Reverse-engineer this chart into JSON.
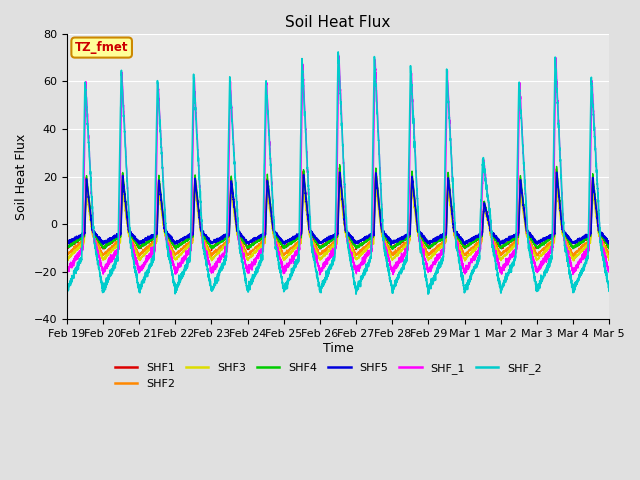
{
  "title": "Soil Heat Flux",
  "xlabel": "Time",
  "ylabel": "Soil Heat Flux",
  "ylim": [
    -40,
    80
  ],
  "yticks": [
    -40,
    -20,
    0,
    20,
    40,
    60,
    80
  ],
  "bg_color": "#e0e0e0",
  "plot_bg_color": "#e8e8e8",
  "annotation_text": "TZ_fmet",
  "annotation_bg": "#ffff99",
  "annotation_border": "#cc8800",
  "annotation_text_color": "#cc0000",
  "series_order": [
    "SHF1",
    "SHF2",
    "SHF3",
    "SHF4",
    "SHF5",
    "SHF_1",
    "SHF_2"
  ],
  "series": {
    "SHF1": {
      "color": "#dd0000",
      "lw": 1.0
    },
    "SHF2": {
      "color": "#ff8800",
      "lw": 1.0
    },
    "SHF3": {
      "color": "#dddd00",
      "lw": 1.0
    },
    "SHF4": {
      "color": "#00cc00",
      "lw": 1.0
    },
    "SHF5": {
      "color": "#0000dd",
      "lw": 1.2
    },
    "SHF_1": {
      "color": "#ff00ff",
      "lw": 1.0
    },
    "SHF_2": {
      "color": "#00cccc",
      "lw": 1.2
    }
  },
  "xtick_labels": [
    "Feb 19",
    "Feb 20",
    "Feb 21",
    "Feb 22",
    "Feb 23",
    "Feb 24",
    "Feb 25",
    "Feb 26",
    "Feb 27",
    "Feb 28",
    "Feb 29",
    "Mar 1",
    "Mar 2",
    "Mar 3",
    "Mar 4",
    "Mar 5"
  ],
  "n_days": 15,
  "pts_per_day": 288,
  "grid_color": "#ffffff",
  "figsize": [
    6.4,
    4.8
  ],
  "dpi": 100
}
